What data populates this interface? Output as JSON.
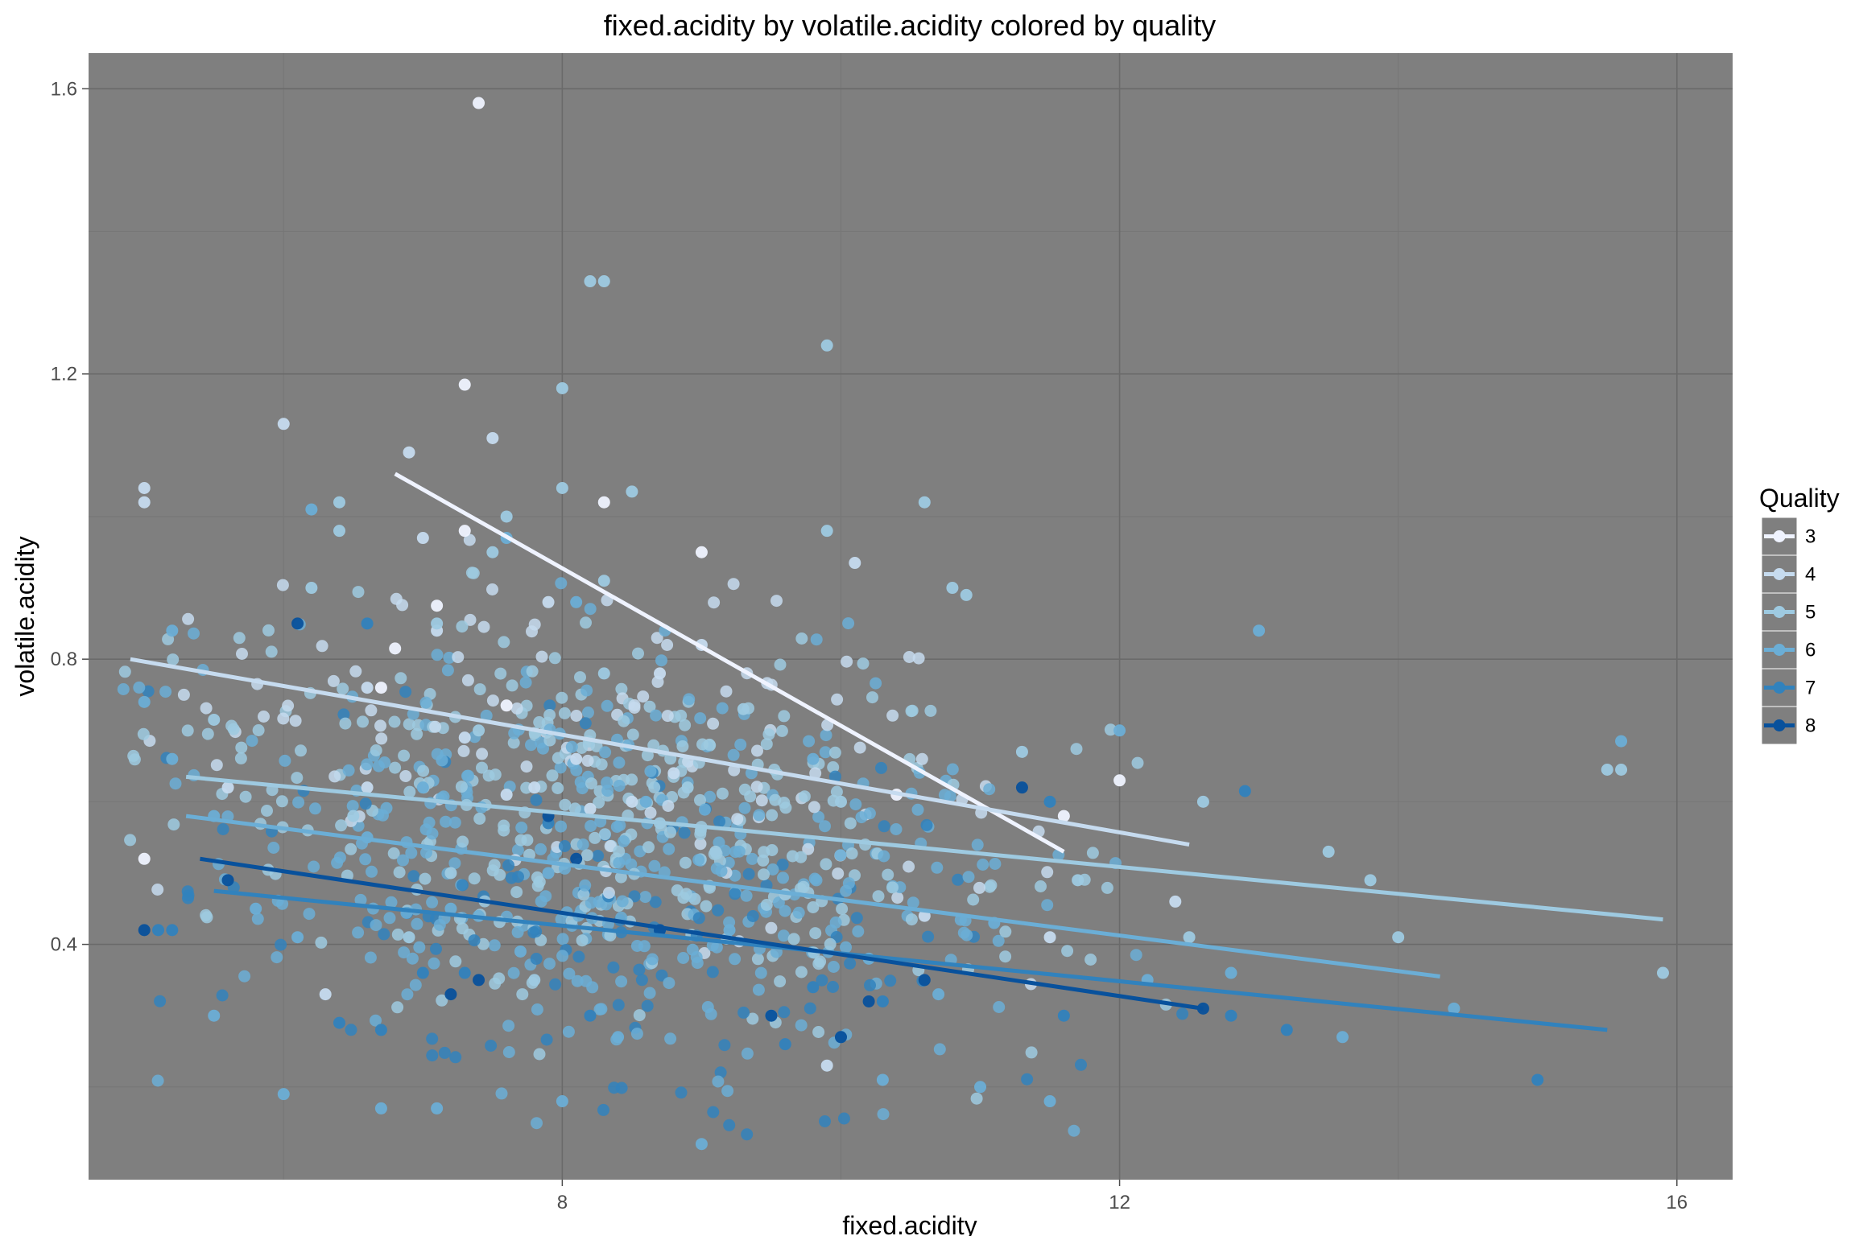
{
  "chart_data": {
    "type": "scatter",
    "title": "fixed.acidity by volatile.acidity colored by quality",
    "xlabel": "fixed.acidity",
    "ylabel": "volatile.acidity",
    "xlim": [
      4.6,
      16.4
    ],
    "ylim": [
      0.07,
      1.65
    ],
    "x_ticks": [
      {
        "value": 8,
        "label": "8"
      },
      {
        "value": 12,
        "label": "12"
      },
      {
        "value": 16,
        "label": "16"
      }
    ],
    "y_ticks": [
      {
        "value": 0.4,
        "label": "0.4"
      },
      {
        "value": 0.8,
        "label": "0.8"
      },
      {
        "value": 1.2,
        "label": "1.2"
      },
      {
        "value": 1.6,
        "label": "1.6"
      }
    ],
    "grid": true,
    "panel_background": "#7f7f7f",
    "legend": {
      "title": "Quality",
      "position": "right",
      "entries": [
        "3",
        "4",
        "5",
        "6",
        "7",
        "8"
      ]
    },
    "series": [
      {
        "name": "3",
        "color": "#eff3ff",
        "points": [
          [
            7.4,
            1.58
          ],
          [
            7.3,
            1.185
          ],
          [
            7.1,
            0.875
          ],
          [
            8.3,
            1.02
          ],
          [
            6.7,
            0.76
          ],
          [
            11.6,
            0.58
          ],
          [
            10.4,
            0.61
          ],
          [
            12.0,
            0.63
          ],
          [
            6.8,
            0.815
          ],
          [
            7.6,
            0.735
          ],
          [
            5.0,
            0.52
          ],
          [
            7.3,
            0.98
          ],
          [
            9.0,
            0.95
          ]
        ],
        "trend": [
          [
            6.8,
            1.06
          ],
          [
            11.6,
            0.53
          ]
        ]
      },
      {
        "name": "4",
        "color": "#c6dbef",
        "points": [
          [
            5.0,
            1.04
          ],
          [
            5.0,
            1.02
          ],
          [
            6.0,
            1.13
          ],
          [
            7.5,
            1.11
          ],
          [
            6.9,
            1.09
          ],
          [
            7.0,
            0.97
          ],
          [
            8.1,
            0.66
          ],
          [
            8.5,
            0.6
          ],
          [
            7.9,
            0.88
          ],
          [
            7.6,
            0.61
          ],
          [
            9.0,
            0.82
          ],
          [
            8.7,
            0.78
          ],
          [
            5.6,
            0.62
          ],
          [
            6.6,
            0.62
          ],
          [
            7.3,
            0.69
          ],
          [
            7.8,
            0.62
          ],
          [
            10.1,
            0.935
          ],
          [
            11.5,
            0.41
          ],
          [
            12.4,
            0.46
          ],
          [
            6.3,
            0.33
          ],
          [
            8.8,
            0.64
          ],
          [
            10.6,
            0.44
          ],
          [
            9.9,
            0.23
          ],
          [
            7.1,
            0.84
          ],
          [
            6.6,
            0.76
          ],
          [
            8.2,
            0.59
          ]
        ],
        "trend": [
          [
            4.9,
            0.8
          ],
          [
            12.5,
            0.54
          ]
        ]
      },
      {
        "name": "5",
        "color": "#9ecae1",
        "points": [
          [
            8.2,
            1.33
          ],
          [
            8.3,
            1.33
          ],
          [
            9.9,
            1.24
          ],
          [
            8.0,
            1.18
          ],
          [
            7.6,
            1.0
          ],
          [
            8.3,
            0.91
          ],
          [
            10.6,
            1.02
          ],
          [
            9.9,
            0.98
          ],
          [
            6.4,
            1.02
          ],
          [
            6.4,
            0.98
          ],
          [
            8.0,
            1.04
          ],
          [
            8.5,
            1.035
          ],
          [
            10.8,
            0.9
          ],
          [
            10.9,
            0.89
          ],
          [
            15.5,
            0.645
          ],
          [
            15.6,
            0.645
          ],
          [
            13.8,
            0.49
          ],
          [
            13.5,
            0.53
          ],
          [
            12.6,
            0.6
          ],
          [
            11.3,
            0.67
          ],
          [
            7.5,
            0.95
          ],
          [
            5.5,
            0.715
          ],
          [
            6.2,
            0.9
          ],
          [
            7.1,
            0.85
          ],
          [
            8.3,
            0.78
          ],
          [
            9.3,
            0.73
          ],
          [
            10.0,
            0.6
          ],
          [
            8.7,
            0.57
          ],
          [
            7.2,
            0.5
          ],
          [
            6.9,
            0.41
          ],
          [
            7.8,
            0.35
          ],
          [
            9.6,
            0.47
          ],
          [
            11.7,
            0.49
          ],
          [
            12.5,
            0.41
          ],
          [
            14.0,
            0.41
          ],
          [
            15.9,
            0.36
          ],
          [
            8.9,
            0.62
          ],
          [
            7.4,
            0.7
          ],
          [
            6.5,
            0.58
          ],
          [
            9.1,
            0.53
          ]
        ],
        "trend": [
          [
            5.3,
            0.635
          ],
          [
            15.9,
            0.435
          ]
        ]
      },
      {
        "name": "6",
        "color": "#6baed6",
        "points": [
          [
            5.2,
            0.84
          ],
          [
            5.0,
            0.74
          ],
          [
            5.2,
            0.66
          ],
          [
            5.5,
            0.58
          ],
          [
            6.2,
            1.01
          ],
          [
            7.6,
            0.97
          ],
          [
            8.1,
            0.88
          ],
          [
            9.8,
            0.66
          ],
          [
            12.0,
            0.7
          ],
          [
            13.0,
            0.84
          ],
          [
            15.6,
            0.685
          ],
          [
            14.4,
            0.31
          ],
          [
            13.6,
            0.27
          ],
          [
            10.3,
            0.21
          ],
          [
            9.0,
            0.12
          ],
          [
            7.1,
            0.17
          ],
          [
            6.7,
            0.17
          ],
          [
            6.0,
            0.19
          ],
          [
            5.5,
            0.3
          ],
          [
            8.0,
            0.18
          ],
          [
            11.0,
            0.2
          ],
          [
            11.5,
            0.18
          ],
          [
            8.6,
            0.6
          ],
          [
            7.9,
            0.5
          ],
          [
            7.2,
            0.45
          ],
          [
            9.2,
            0.42
          ],
          [
            10.2,
            0.38
          ],
          [
            11.1,
            0.43
          ],
          [
            12.2,
            0.35
          ],
          [
            6.6,
            0.55
          ],
          [
            7.0,
            0.62
          ],
          [
            9.5,
            0.3
          ],
          [
            8.4,
            0.27
          ],
          [
            10.7,
            0.33
          ],
          [
            6.1,
            0.41
          ],
          [
            12.8,
            0.36
          ],
          [
            5.8,
            0.45
          ],
          [
            7.7,
            0.39
          ]
        ],
        "trend": [
          [
            5.3,
            0.58
          ],
          [
            14.3,
            0.355
          ]
        ]
      },
      {
        "name": "7",
        "color": "#3182bd",
        "points": [
          [
            5.1,
            0.42
          ],
          [
            5.2,
            0.42
          ],
          [
            6.7,
            0.28
          ],
          [
            7.3,
            0.36
          ],
          [
            8.7,
            0.42
          ],
          [
            9.8,
            0.34
          ],
          [
            10.3,
            0.32
          ],
          [
            11.6,
            0.3
          ],
          [
            12.8,
            0.3
          ],
          [
            13.2,
            0.28
          ],
          [
            15.0,
            0.21
          ],
          [
            6.6,
            0.85
          ],
          [
            7.9,
            0.57
          ],
          [
            10.0,
            0.27
          ],
          [
            11.5,
            0.6
          ],
          [
            12.9,
            0.615
          ],
          [
            7.0,
            0.36
          ],
          [
            9.6,
            0.26
          ],
          [
            8.2,
            0.3
          ],
          [
            6.4,
            0.29
          ]
        ],
        "trend": [
          [
            5.5,
            0.475
          ],
          [
            15.5,
            0.28
          ]
        ]
      },
      {
        "name": "8",
        "color": "#08519c",
        "points": [
          [
            5.0,
            0.42
          ],
          [
            5.6,
            0.49
          ],
          [
            6.1,
            0.85
          ],
          [
            7.2,
            0.33
          ],
          [
            7.4,
            0.35
          ],
          [
            8.1,
            0.52
          ],
          [
            8.7,
            0.42
          ],
          [
            9.5,
            0.3
          ],
          [
            10.2,
            0.32
          ],
          [
            10.6,
            0.35
          ],
          [
            11.3,
            0.62
          ],
          [
            12.6,
            0.31
          ],
          [
            7.9,
            0.58
          ],
          [
            10.0,
            0.27
          ]
        ],
        "trend": [
          [
            5.4,
            0.52
          ],
          [
            12.6,
            0.31
          ]
        ]
      }
    ],
    "background_cloud": {
      "color_series": [
        "4",
        "5",
        "6",
        "7",
        "5",
        "6",
        "5",
        "6"
      ],
      "note": ""
    }
  }
}
